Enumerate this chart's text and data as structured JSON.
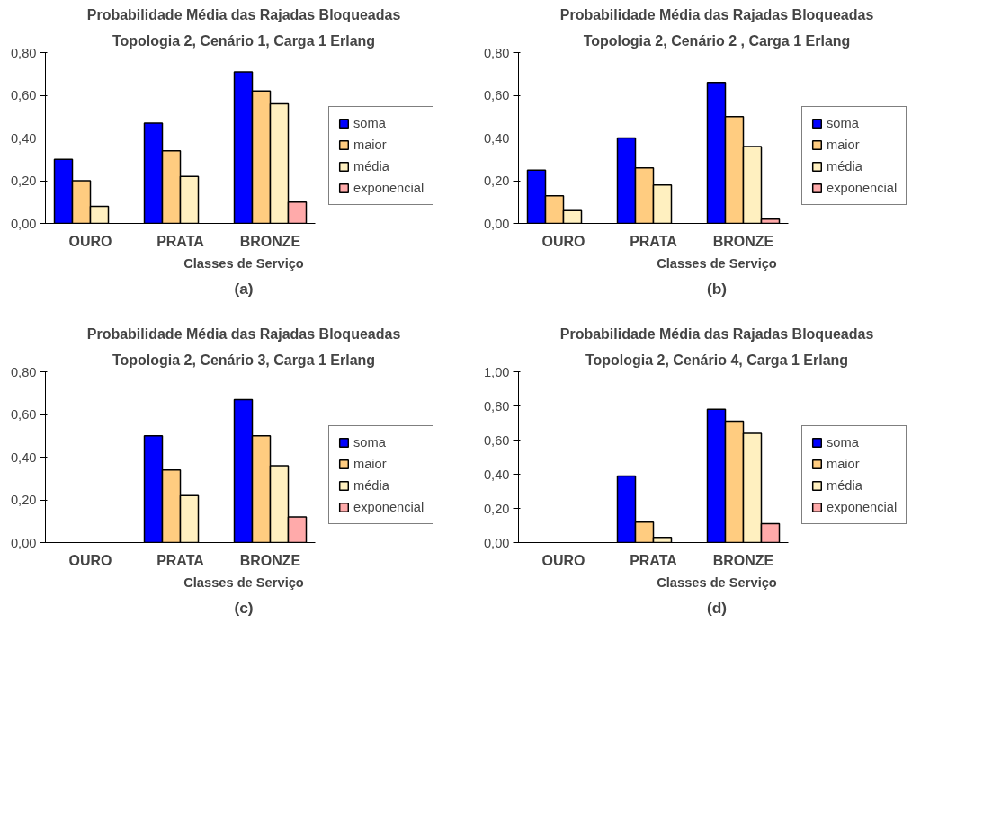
{
  "chart_data": [
    {
      "type": "bar",
      "title": "Probabilidade Média das Rajadas Bloqueadas",
      "subtitle": "Topologia 2, Cenário 1, Carga 1 Erlang",
      "xlabel": "Classes de Serviço",
      "annotations": [
        "(a)"
      ],
      "categories": [
        "OURO",
        "PRATA",
        "BRONZE"
      ],
      "ylim": [
        0,
        0.8
      ],
      "yticks": [
        {
          "value": 0,
          "label": "0,00"
        },
        {
          "value": 0.2,
          "label": "0,20"
        },
        {
          "value": 0.4,
          "label": "0,40"
        },
        {
          "value": 0.6,
          "label": "0,60"
        },
        {
          "value": 0.8,
          "label": "0,80"
        }
      ],
      "grid": false,
      "legend": "right",
      "series": [
        {
          "name": "soma",
          "color": "#0000ff",
          "values": [
            0.3,
            0.47,
            0.71
          ]
        },
        {
          "name": "maior",
          "color": "#ffcc80",
          "values": [
            0.2,
            0.34,
            0.62
          ]
        },
        {
          "name": "média",
          "color": "#fff0c0",
          "values": [
            0.08,
            0.22,
            0.56
          ]
        },
        {
          "name": "exponencial",
          "color": "#ffaaaa",
          "values": [
            null,
            null,
            0.1
          ]
        }
      ]
    },
    {
      "type": "bar",
      "title": "Probabilidade Média das Rajadas Bloqueadas",
      "subtitle": "Topologia 2, Cenário 2 , Carga 1 Erlang",
      "xlabel": "Classes de Serviço",
      "annotations": [
        "(b)"
      ],
      "categories": [
        "OURO",
        "PRATA",
        "BRONZE"
      ],
      "ylim": [
        0,
        0.8
      ],
      "yticks": [
        {
          "value": 0,
          "label": "0,00"
        },
        {
          "value": 0.2,
          "label": "0,20"
        },
        {
          "value": 0.4,
          "label": "0,40"
        },
        {
          "value": 0.6,
          "label": "0,60"
        },
        {
          "value": 0.8,
          "label": "0,80"
        }
      ],
      "grid": false,
      "legend": "right",
      "series": [
        {
          "name": "soma",
          "color": "#0000ff",
          "values": [
            0.25,
            0.4,
            0.66
          ]
        },
        {
          "name": "maior",
          "color": "#ffcc80",
          "values": [
            0.13,
            0.26,
            0.5
          ]
        },
        {
          "name": "média",
          "color": "#fff0c0",
          "values": [
            0.06,
            0.18,
            0.36
          ]
        },
        {
          "name": "exponencial",
          "color": "#ffaaaa",
          "values": [
            null,
            null,
            0.02
          ]
        }
      ]
    },
    {
      "type": "bar",
      "title": "Probabilidade Média das Rajadas Bloqueadas",
      "subtitle": "Topologia 2, Cenário 3, Carga 1 Erlang",
      "xlabel": "Classes de Serviço",
      "annotations": [
        "(c)"
      ],
      "categories": [
        "OURO",
        "PRATA",
        "BRONZE"
      ],
      "ylim": [
        0,
        0.8
      ],
      "yticks": [
        {
          "value": 0,
          "label": "0,00"
        },
        {
          "value": 0.2,
          "label": "0,20"
        },
        {
          "value": 0.4,
          "label": "0,40"
        },
        {
          "value": 0.6,
          "label": "0,60"
        },
        {
          "value": 0.8,
          "label": "0,80"
        }
      ],
      "grid": false,
      "legend": "right",
      "series": [
        {
          "name": "soma",
          "color": "#0000ff",
          "values": [
            null,
            0.5,
            0.67
          ]
        },
        {
          "name": "maior",
          "color": "#ffcc80",
          "values": [
            null,
            0.34,
            0.5
          ]
        },
        {
          "name": "média",
          "color": "#fff0c0",
          "values": [
            null,
            0.22,
            0.36
          ]
        },
        {
          "name": "exponencial",
          "color": "#ffaaaa",
          "values": [
            null,
            null,
            0.12
          ]
        }
      ]
    },
    {
      "type": "bar",
      "title": "Probabilidade Média das Rajadas Bloqueadas",
      "subtitle": "Topologia 2, Cenário 4, Carga 1 Erlang",
      "xlabel": "Classes de Serviço",
      "annotations": [
        "(d)"
      ],
      "categories": [
        "OURO",
        "PRATA",
        "BRONZE"
      ],
      "ylim": [
        0,
        1.0
      ],
      "yticks": [
        {
          "value": 0,
          "label": "0,00"
        },
        {
          "value": 0.2,
          "label": "0,20"
        },
        {
          "value": 0.4,
          "label": "0,40"
        },
        {
          "value": 0.6,
          "label": "0,60"
        },
        {
          "value": 0.8,
          "label": "0,80"
        },
        {
          "value": 1.0,
          "label": "1,00"
        }
      ],
      "grid": false,
      "legend": "right",
      "series": [
        {
          "name": "soma",
          "color": "#0000ff",
          "values": [
            null,
            0.39,
            0.78
          ]
        },
        {
          "name": "maior",
          "color": "#ffcc80",
          "values": [
            null,
            0.12,
            0.71
          ]
        },
        {
          "name": "média",
          "color": "#fff0c0",
          "values": [
            null,
            0.03,
            0.64
          ]
        },
        {
          "name": "exponencial",
          "color": "#ffaaaa",
          "values": [
            null,
            null,
            0.11
          ]
        }
      ]
    }
  ]
}
